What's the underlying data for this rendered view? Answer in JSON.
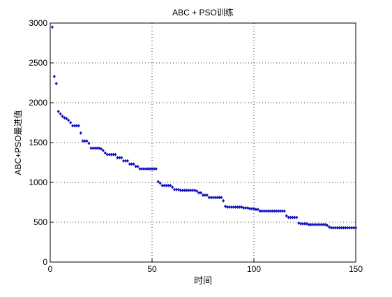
{
  "chart_data": {
    "type": "scatter",
    "title": "ABC + PSO训练",
    "x_label": "时间",
    "y_label": "ABC+PSO最进值",
    "color": "#1010c0",
    "grid": true,
    "xlim": [
      0,
      150
    ],
    "xticks": [
      0,
      50,
      100,
      150
    ],
    "ylim": [
      0,
      3000
    ],
    "yticks": [
      0,
      500,
      1000,
      1500,
      2000,
      2500,
      3000
    ],
    "x": [
      1,
      2,
      3,
      4,
      5,
      6,
      7,
      8,
      9,
      10,
      11,
      12,
      13,
      14,
      15,
      16,
      17,
      18,
      19,
      20,
      21,
      22,
      23,
      24,
      25,
      26,
      27,
      28,
      29,
      30,
      31,
      32,
      33,
      34,
      35,
      36,
      37,
      38,
      39,
      40,
      41,
      42,
      43,
      44,
      45,
      46,
      47,
      48,
      49,
      50,
      51,
      52,
      53,
      54,
      55,
      56,
      57,
      58,
      59,
      60,
      61,
      62,
      63,
      64,
      65,
      66,
      67,
      68,
      69,
      70,
      71,
      72,
      73,
      74,
      75,
      76,
      77,
      78,
      79,
      80,
      81,
      82,
      83,
      84,
      85,
      86,
      87,
      88,
      89,
      90,
      91,
      92,
      93,
      94,
      95,
      96,
      97,
      98,
      99,
      100,
      101,
      102,
      103,
      104,
      105,
      106,
      107,
      108,
      109,
      110,
      111,
      112,
      113,
      114,
      115,
      116,
      117,
      118,
      119,
      120,
      121,
      122,
      123,
      124,
      125,
      126,
      127,
      128,
      129,
      130,
      131,
      132,
      133,
      134,
      135,
      136,
      137,
      138,
      139,
      140,
      141,
      142,
      143,
      144,
      145,
      146,
      147,
      148,
      149,
      150
    ],
    "values": [
      2950,
      2330,
      2240,
      1890,
      1860,
      1830,
      1810,
      1800,
      1780,
      1750,
      1710,
      1710,
      1710,
      1710,
      1620,
      1520,
      1520,
      1520,
      1490,
      1430,
      1430,
      1430,
      1430,
      1430,
      1420,
      1400,
      1370,
      1350,
      1350,
      1350,
      1350,
      1350,
      1310,
      1310,
      1310,
      1270,
      1270,
      1270,
      1230,
      1230,
      1230,
      1200,
      1200,
      1170,
      1170,
      1170,
      1170,
      1170,
      1170,
      1170,
      1170,
      1170,
      1010,
      990,
      960,
      960,
      960,
      960,
      960,
      940,
      910,
      910,
      910,
      900,
      900,
      900,
      900,
      900,
      900,
      900,
      900,
      890,
      870,
      870,
      840,
      840,
      840,
      810,
      810,
      810,
      810,
      810,
      810,
      810,
      770,
      700,
      690,
      690,
      690,
      690,
      690,
      690,
      690,
      690,
      680,
      680,
      680,
      670,
      670,
      670,
      660,
      660,
      640,
      640,
      640,
      640,
      640,
      640,
      640,
      640,
      640,
      640,
      640,
      640,
      640,
      580,
      560,
      560,
      560,
      560,
      560,
      490,
      480,
      480,
      480,
      480,
      470,
      470,
      470,
      470,
      470,
      470,
      470,
      470,
      470,
      460,
      440,
      430,
      430,
      430,
      430,
      430,
      430,
      430,
      430,
      430,
      430,
      430,
      430,
      430
    ]
  }
}
